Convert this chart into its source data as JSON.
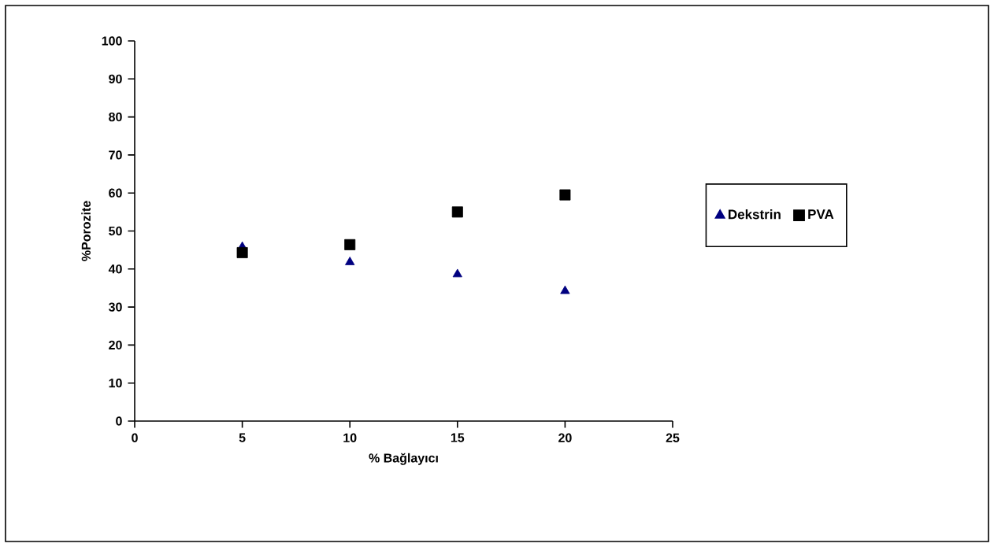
{
  "chart_data": {
    "type": "scatter",
    "xlabel": "% Bağlayıcı",
    "ylabel": "%Porozite",
    "xlim": [
      0,
      25
    ],
    "xticks": [
      0,
      5,
      10,
      15,
      20,
      25
    ],
    "ylim": [
      0,
      100
    ],
    "yticks": [
      0,
      10,
      20,
      30,
      40,
      50,
      60,
      70,
      80,
      90,
      100
    ],
    "legend": "right",
    "series": [
      {
        "name": "Dekstrin",
        "color": "#000080",
        "marker": "triangle",
        "x": [
          5,
          10,
          15,
          20
        ],
        "values": [
          45.8,
          41.8,
          38.6,
          34.2
        ]
      },
      {
        "name": "PVA",
        "color": "#000000",
        "marker": "square",
        "x": [
          5,
          10,
          15,
          20
        ],
        "values": [
          44.3,
          46.4,
          55.0,
          59.5
        ]
      }
    ]
  }
}
